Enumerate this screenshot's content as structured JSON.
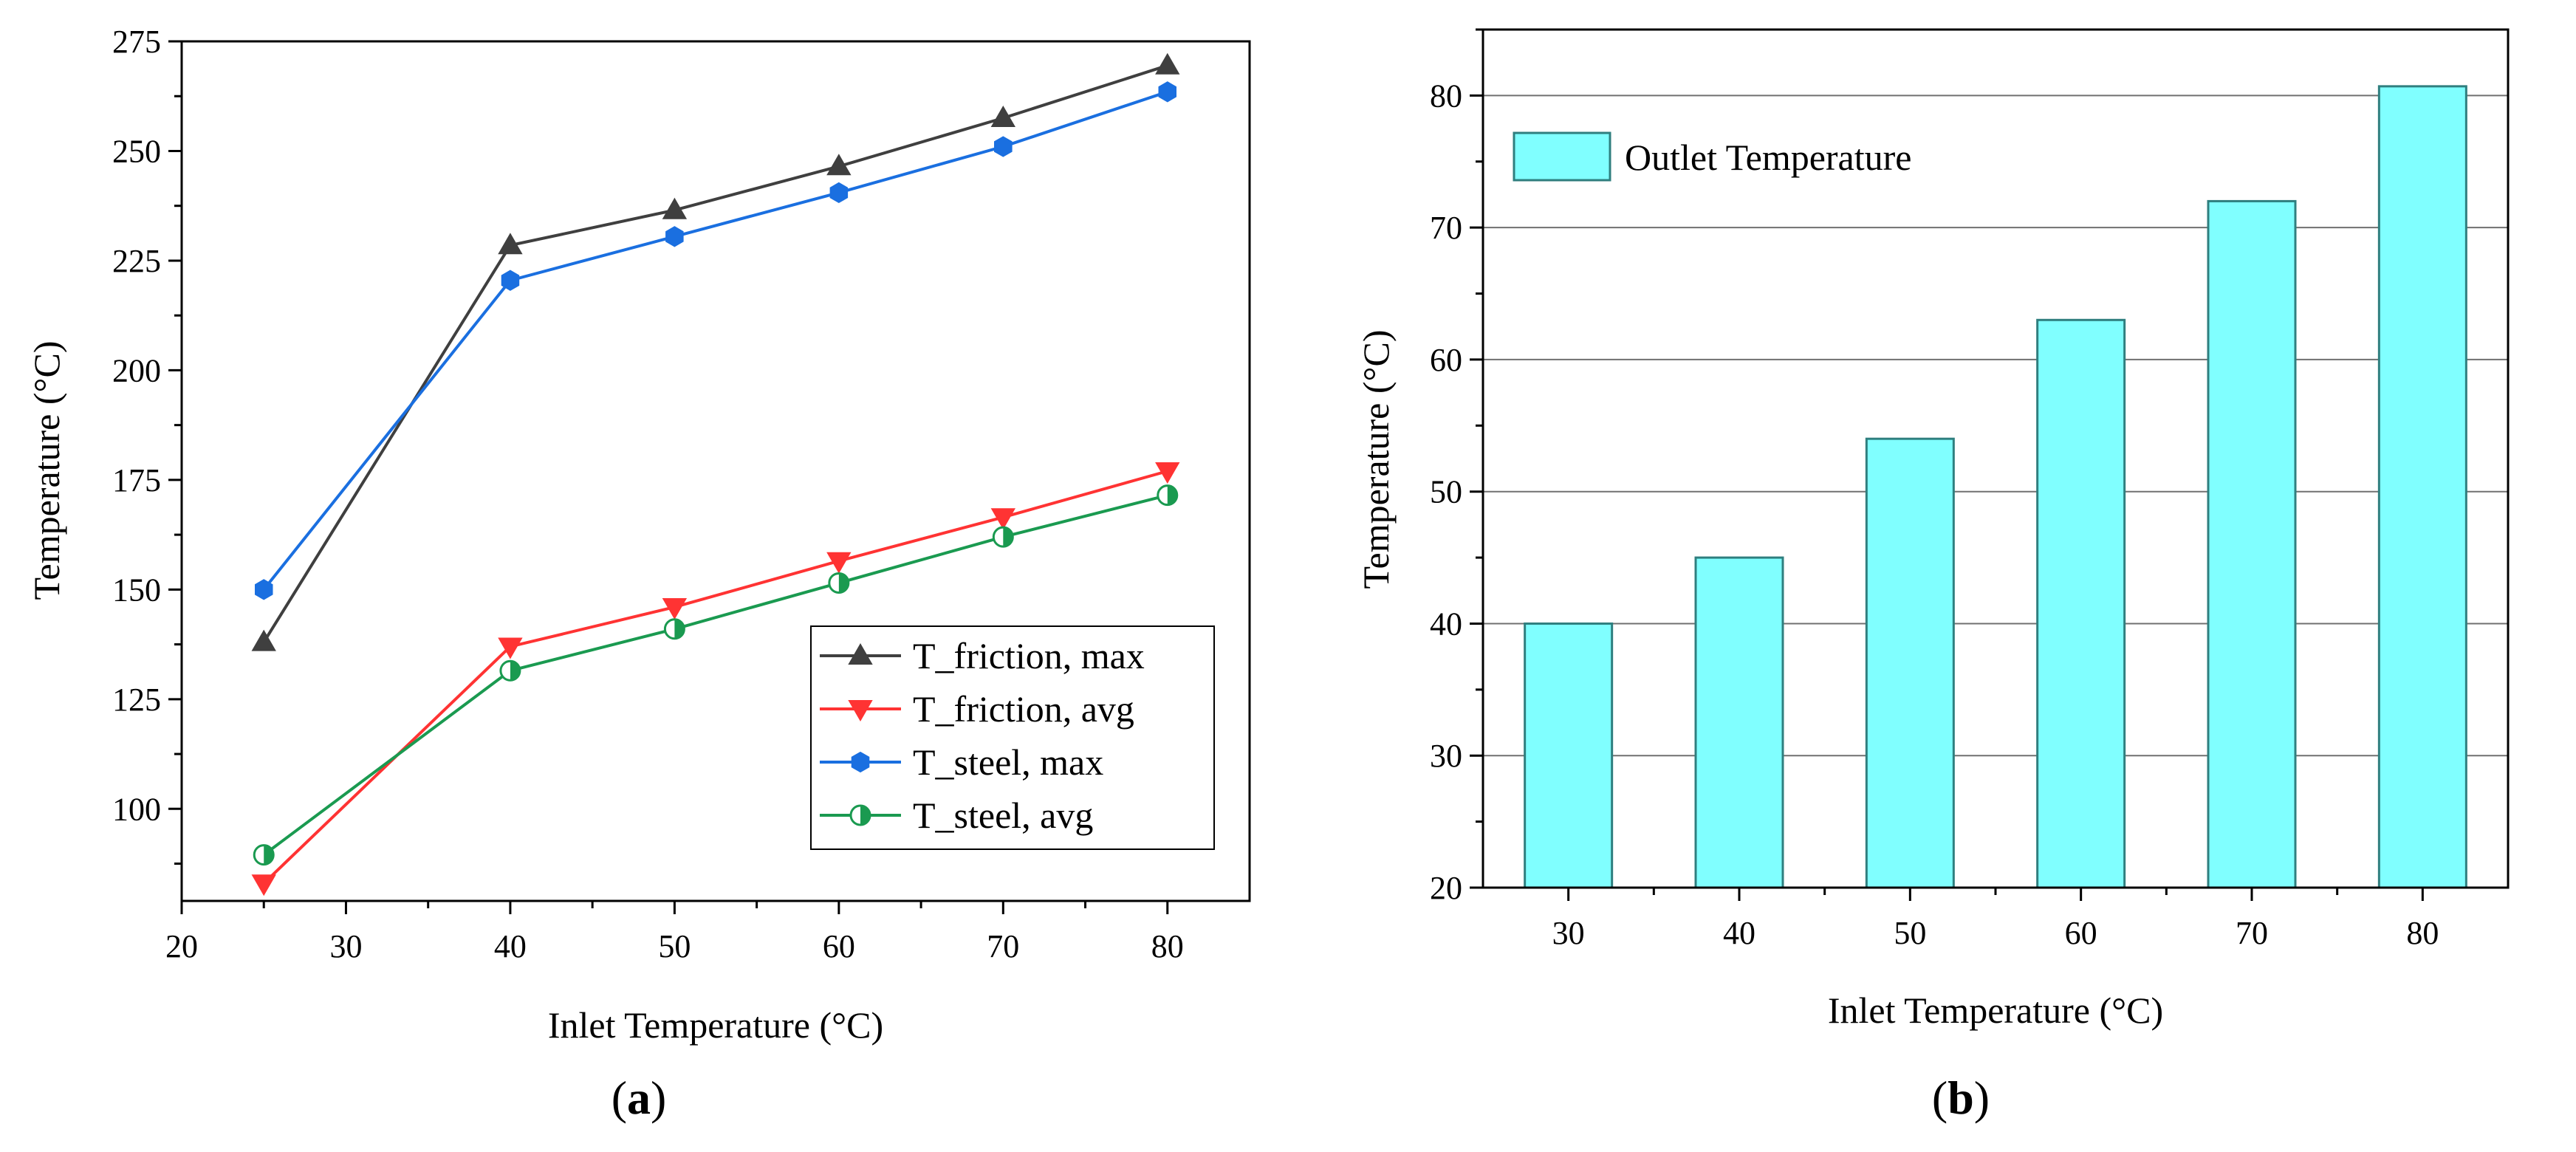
{
  "panels": {
    "a_label_open": "(",
    "a_label_letter": "a",
    "a_label_close": ")",
    "b_label_open": "(",
    "b_label_letter": "b",
    "b_label_close": ")"
  },
  "colors": {
    "t_friction_max": "#3f3f3f",
    "t_friction_avg": "#ff3333",
    "t_steel_max": "#1a6fe0",
    "t_steel_avg": "#1a9a50",
    "bar_fill": "#80ffff",
    "bar_stroke": "#2f7f7f"
  },
  "chart_data": [
    {
      "type": "line",
      "title": "",
      "xlabel": "Inlet Temperature (°C)",
      "ylabel": "Temperature (°C)",
      "xlim": [
        20,
        85
      ],
      "ylim": [
        79,
        275
      ],
      "xticks": [
        20,
        30,
        40,
        50,
        60,
        70,
        80
      ],
      "yticks": [
        100,
        125,
        150,
        175,
        200,
        225,
        250,
        275
      ],
      "grid": false,
      "legend_position": "bottom-right",
      "x": [
        25,
        40,
        50,
        60,
        70,
        80
      ],
      "series": [
        {
          "name": "T_friction, max",
          "marker": "triangle-up",
          "values": [
            138,
            228.5,
            236.5,
            246.5,
            257.5,
            269.5
          ]
        },
        {
          "name": "T_friction, avg",
          "marker": "triangle-down",
          "values": [
            83,
            137,
            146,
            156.5,
            166.5,
            177
          ]
        },
        {
          "name": "T_steel, max",
          "marker": "hexagon",
          "values": [
            150,
            220.5,
            230.5,
            240.5,
            251,
            263.5
          ]
        },
        {
          "name": "T_steel, avg",
          "marker": "half-circle",
          "values": [
            89.5,
            131.5,
            141,
            151.5,
            162,
            171.5
          ]
        }
      ]
    },
    {
      "type": "bar",
      "title": "",
      "xlabel": "Inlet Temperature (°C)",
      "ylabel": "Temperature (°C)",
      "categories": [
        "30",
        "40",
        "50",
        "60",
        "70",
        "80"
      ],
      "ylim": [
        20,
        85
      ],
      "yticks": [
        20,
        30,
        40,
        50,
        60,
        70,
        80
      ],
      "grid": true,
      "legend_position": "top-left",
      "series": [
        {
          "name": "Outlet Temperature",
          "values": [
            40,
            45,
            54,
            63,
            72,
            80.7
          ]
        }
      ]
    }
  ]
}
